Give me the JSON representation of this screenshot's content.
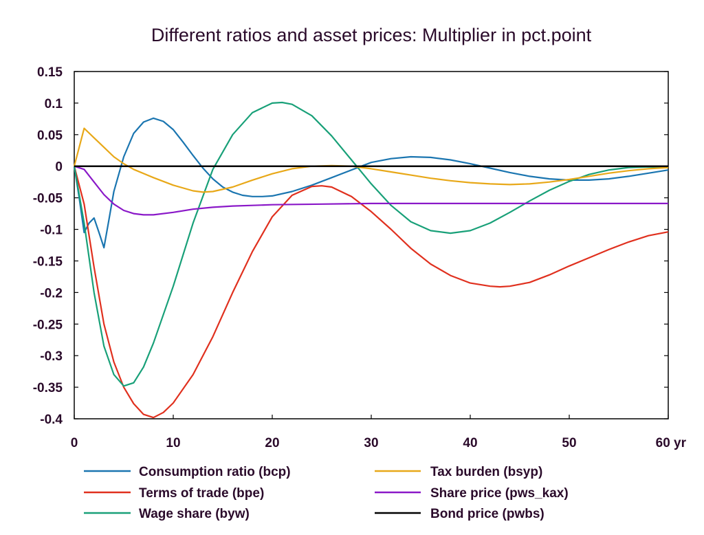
{
  "chart_data": {
    "type": "line",
    "title": "Different ratios and asset prices: Multiplier in pct.point",
    "xlabel": "",
    "ylabel": "",
    "x_unit_label": "yr",
    "xlim": [
      0,
      60
    ],
    "ylim": [
      -0.4,
      0.15
    ],
    "x_ticks": [
      0,
      10,
      20,
      30,
      40,
      50,
      60
    ],
    "x_tick_labels": [
      "0",
      "10",
      "20",
      "30",
      "40",
      "50",
      "60 yr"
    ],
    "y_ticks": [
      0.15,
      0.1,
      0.05,
      0,
      -0.05,
      -0.1,
      -0.15,
      -0.2,
      -0.25,
      -0.3,
      -0.35,
      -0.4
    ],
    "y_tick_labels": [
      "0.15",
      "0.1",
      "0.05",
      "0",
      "-0.05",
      "-0.1",
      "-0.15",
      "-0.2",
      "-0.25",
      "-0.3",
      "-0.35",
      "-0.4"
    ],
    "grid": false,
    "legend_position": "bottom",
    "series": [
      {
        "name": "Consumption ratio (bcp)",
        "color": "#1a75b0",
        "points": [
          [
            0,
            0
          ],
          [
            0.5,
            -0.05
          ],
          [
            1,
            -0.105
          ],
          [
            1.5,
            -0.09
          ],
          [
            2,
            -0.082
          ],
          [
            2.5,
            -0.105
          ],
          [
            3,
            -0.129
          ],
          [
            3.5,
            -0.085
          ],
          [
            4,
            -0.04
          ],
          [
            5,
            0.015
          ],
          [
            6,
            0.052
          ],
          [
            7,
            0.07
          ],
          [
            8,
            0.076
          ],
          [
            9,
            0.071
          ],
          [
            10,
            0.058
          ],
          [
            11,
            0.038
          ],
          [
            12,
            0.017
          ],
          [
            13,
            -0.003
          ],
          [
            14,
            -0.02
          ],
          [
            15,
            -0.033
          ],
          [
            16,
            -0.041
          ],
          [
            17,
            -0.046
          ],
          [
            18,
            -0.048
          ],
          [
            19,
            -0.048
          ],
          [
            20,
            -0.047
          ],
          [
            22,
            -0.04
          ],
          [
            24,
            -0.03
          ],
          [
            26,
            -0.018
          ],
          [
            28,
            -0.006
          ],
          [
            30,
            0.006
          ],
          [
            32,
            0.012
          ],
          [
            34,
            0.015
          ],
          [
            36,
            0.014
          ],
          [
            38,
            0.01
          ],
          [
            40,
            0.004
          ],
          [
            42,
            -0.003
          ],
          [
            44,
            -0.01
          ],
          [
            46,
            -0.016
          ],
          [
            48,
            -0.02
          ],
          [
            50,
            -0.022
          ],
          [
            52,
            -0.022
          ],
          [
            54,
            -0.02
          ],
          [
            56,
            -0.016
          ],
          [
            58,
            -0.011
          ],
          [
            60,
            -0.006
          ]
        ]
      },
      {
        "name": "Terms of trade (bpe)",
        "color": "#e0301e",
        "points": [
          [
            0,
            0
          ],
          [
            1,
            -0.06
          ],
          [
            2,
            -0.16
          ],
          [
            3,
            -0.25
          ],
          [
            4,
            -0.31
          ],
          [
            5,
            -0.35
          ],
          [
            6,
            -0.376
          ],
          [
            7,
            -0.393
          ],
          [
            8,
            -0.398
          ],
          [
            9,
            -0.39
          ],
          [
            10,
            -0.375
          ],
          [
            12,
            -0.33
          ],
          [
            14,
            -0.27
          ],
          [
            16,
            -0.2
          ],
          [
            18,
            -0.135
          ],
          [
            20,
            -0.08
          ],
          [
            22,
            -0.046
          ],
          [
            24,
            -0.032
          ],
          [
            25,
            -0.031
          ],
          [
            26,
            -0.033
          ],
          [
            28,
            -0.048
          ],
          [
            30,
            -0.072
          ],
          [
            32,
            -0.1
          ],
          [
            34,
            -0.13
          ],
          [
            36,
            -0.155
          ],
          [
            38,
            -0.173
          ],
          [
            40,
            -0.185
          ],
          [
            42,
            -0.19
          ],
          [
            43,
            -0.191
          ],
          [
            44,
            -0.19
          ],
          [
            46,
            -0.184
          ],
          [
            48,
            -0.172
          ],
          [
            50,
            -0.158
          ],
          [
            52,
            -0.145
          ],
          [
            54,
            -0.132
          ],
          [
            56,
            -0.12
          ],
          [
            58,
            -0.11
          ],
          [
            60,
            -0.104
          ]
        ]
      },
      {
        "name": "Wage share (byw)",
        "color": "#18a078",
        "points": [
          [
            0,
            0
          ],
          [
            1,
            -0.09
          ],
          [
            2,
            -0.2
          ],
          [
            3,
            -0.285
          ],
          [
            4,
            -0.33
          ],
          [
            5,
            -0.348
          ],
          [
            6,
            -0.343
          ],
          [
            7,
            -0.318
          ],
          [
            8,
            -0.28
          ],
          [
            10,
            -0.19
          ],
          [
            12,
            -0.09
          ],
          [
            14,
            -0.005
          ],
          [
            16,
            0.05
          ],
          [
            18,
            0.085
          ],
          [
            20,
            0.1
          ],
          [
            21,
            0.101
          ],
          [
            22,
            0.098
          ],
          [
            24,
            0.08
          ],
          [
            26,
            0.048
          ],
          [
            28,
            0.01
          ],
          [
            30,
            -0.028
          ],
          [
            32,
            -0.062
          ],
          [
            34,
            -0.088
          ],
          [
            36,
            -0.102
          ],
          [
            38,
            -0.106
          ],
          [
            40,
            -0.102
          ],
          [
            42,
            -0.09
          ],
          [
            44,
            -0.073
          ],
          [
            46,
            -0.055
          ],
          [
            48,
            -0.038
          ],
          [
            50,
            -0.024
          ],
          [
            52,
            -0.013
          ],
          [
            54,
            -0.006
          ],
          [
            56,
            -0.002
          ],
          [
            58,
            -0.001
          ],
          [
            60,
            -0.002
          ]
        ]
      },
      {
        "name": "Tax burden (bsyp)",
        "color": "#e8a818",
        "points": [
          [
            0,
            0
          ],
          [
            1,
            0.06
          ],
          [
            2,
            0.045
          ],
          [
            3,
            0.03
          ],
          [
            4,
            0.015
          ],
          [
            5,
            0.004
          ],
          [
            6,
            -0.005
          ],
          [
            8,
            -0.018
          ],
          [
            10,
            -0.03
          ],
          [
            12,
            -0.039
          ],
          [
            13,
            -0.041
          ],
          [
            14,
            -0.04
          ],
          [
            16,
            -0.033
          ],
          [
            18,
            -0.022
          ],
          [
            20,
            -0.012
          ],
          [
            22,
            -0.004
          ],
          [
            24,
            0.0
          ],
          [
            26,
            0.001
          ],
          [
            28,
            0.0
          ],
          [
            30,
            -0.004
          ],
          [
            32,
            -0.009
          ],
          [
            34,
            -0.014
          ],
          [
            36,
            -0.019
          ],
          [
            38,
            -0.023
          ],
          [
            40,
            -0.026
          ],
          [
            42,
            -0.028
          ],
          [
            44,
            -0.029
          ],
          [
            46,
            -0.028
          ],
          [
            48,
            -0.025
          ],
          [
            50,
            -0.021
          ],
          [
            52,
            -0.016
          ],
          [
            54,
            -0.011
          ],
          [
            56,
            -0.007
          ],
          [
            58,
            -0.004
          ],
          [
            60,
            -0.002
          ]
        ]
      },
      {
        "name": "Share price (pws_kax)",
        "color": "#8a18c8",
        "points": [
          [
            0,
            0
          ],
          [
            1,
            -0.005
          ],
          [
            2,
            -0.025
          ],
          [
            3,
            -0.045
          ],
          [
            4,
            -0.06
          ],
          [
            5,
            -0.07
          ],
          [
            6,
            -0.075
          ],
          [
            7,
            -0.077
          ],
          [
            8,
            -0.077
          ],
          [
            10,
            -0.073
          ],
          [
            12,
            -0.068
          ],
          [
            14,
            -0.065
          ],
          [
            16,
            -0.063
          ],
          [
            18,
            -0.062
          ],
          [
            20,
            -0.061
          ],
          [
            25,
            -0.06
          ],
          [
            30,
            -0.059
          ],
          [
            40,
            -0.059
          ],
          [
            50,
            -0.059
          ],
          [
            60,
            -0.059
          ]
        ]
      },
      {
        "name": "Bond price (pwbs)",
        "color": "#000000",
        "points": [
          [
            0,
            0
          ],
          [
            60,
            0
          ]
        ]
      }
    ]
  }
}
